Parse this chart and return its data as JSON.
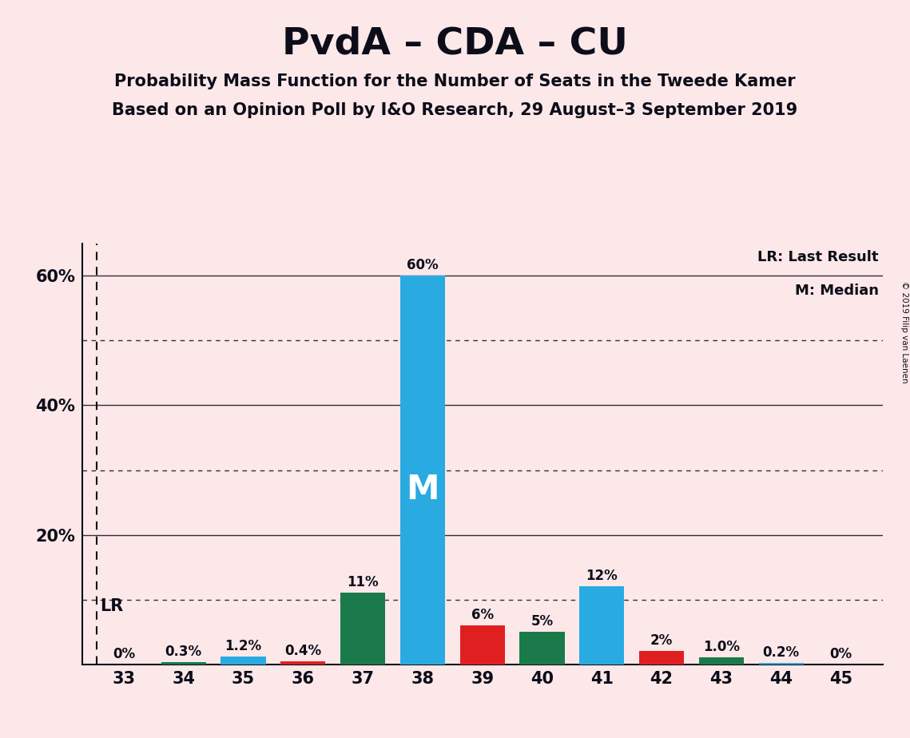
{
  "title": "PvdA – CDA – CU",
  "subtitle1": "Probability Mass Function for the Number of Seats in the Tweede Kamer",
  "subtitle2": "Based on an Opinion Poll by I&O Research, 29 August–3 September 2019",
  "copyright": "© 2019 Filip van Laenen",
  "seats": [
    33,
    34,
    35,
    36,
    37,
    38,
    39,
    40,
    41,
    42,
    43,
    44,
    45
  ],
  "values": [
    0.0,
    0.3,
    1.2,
    0.4,
    11.0,
    60.0,
    6.0,
    5.0,
    12.0,
    2.0,
    1.0,
    0.2,
    0.0
  ],
  "labels": [
    "0%",
    "0.3%",
    "1.2%",
    "0.4%",
    "11%",
    "60%",
    "6%",
    "5%",
    "12%",
    "2%",
    "1.0%",
    "0.2%",
    "0%"
  ],
  "colors": [
    "#1a7a4a",
    "#1a7a4a",
    "#29abe2",
    "#e02020",
    "#1a7a4a",
    "#29abe2",
    "#e02020",
    "#1a7a4a",
    "#29abe2",
    "#e02020",
    "#1a7a4a",
    "#29abe2",
    "#1a7a4a"
  ],
  "median_seat": 38,
  "lr_seat": 33,
  "lr_label": "LR",
  "lr_legend": "LR: Last Result",
  "m_legend": "M: Median",
  "median_label": "M",
  "background_color": "#fce8e8",
  "axis_color": "#0d0d1a",
  "ylim": [
    0,
    65
  ],
  "yticks": [
    0,
    10,
    20,
    30,
    40,
    50,
    60
  ],
  "dotted_yticks": [
    10,
    30,
    50
  ],
  "solid_yticks": [
    20,
    40,
    60
  ],
  "figsize": [
    11.39,
    9.24
  ],
  "dpi": 100
}
